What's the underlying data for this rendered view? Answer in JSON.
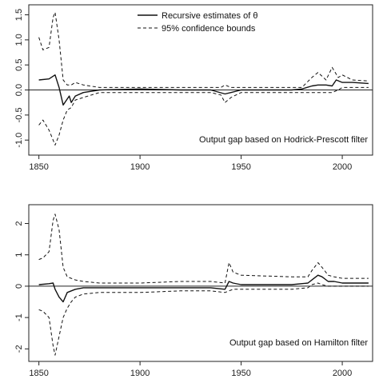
{
  "legend": {
    "estimate_label": "Recursive estimates of θ",
    "bounds_label": "95% confidence bounds"
  },
  "chart_data": [
    {
      "type": "line",
      "title": "",
      "annotation": "Output gap based on Hodrick-Prescott filter",
      "xlabel": "",
      "ylabel": "",
      "xlim": [
        1845,
        2015
      ],
      "ylim": [
        -1.3,
        1.7
      ],
      "xticks": [
        1850,
        1900,
        1950,
        2000
      ],
      "yticks": [
        -1.0,
        -0.5,
        0.0,
        0.5,
        1.0,
        1.5
      ],
      "ytick_labels": [
        "-1.0",
        "-0.5",
        "0.0",
        "0.5",
        "1.0",
        "1.5"
      ],
      "reference_line": 0,
      "legend_position": "top-center",
      "series": [
        {
          "style": "solid",
          "x": [
            1850,
            1855,
            1858,
            1860,
            1862,
            1865,
            1866,
            1868,
            1872,
            1880,
            1900,
            1920,
            1935,
            1942,
            1945,
            1950,
            1975,
            1980,
            1985,
            1988,
            1992,
            1995,
            1997,
            2000,
            2005,
            2013
          ],
          "y": [
            0.2,
            0.22,
            0.3,
            0.05,
            -0.3,
            -0.12,
            -0.25,
            -0.12,
            -0.05,
            0.0,
            0.02,
            0.0,
            0.0,
            -0.08,
            -0.05,
            0.0,
            0.0,
            0.02,
            0.08,
            0.1,
            0.1,
            0.08,
            0.2,
            0.15,
            0.15,
            0.13
          ]
        },
        {
          "style": "dashed",
          "x": [
            1850,
            1852,
            1855,
            1857,
            1858,
            1860,
            1862,
            1864,
            1866,
            1868,
            1872,
            1880,
            1900,
            1920,
            1935,
            1940,
            1942,
            1945,
            1950,
            1975,
            1980,
            1985,
            1988,
            1992,
            1995,
            1998,
            2000,
            2005,
            2013
          ],
          "y": [
            1.05,
            0.8,
            0.85,
            1.45,
            1.55,
            1.0,
            0.2,
            0.1,
            0.1,
            0.15,
            0.1,
            0.05,
            0.05,
            0.05,
            0.05,
            0.05,
            0.1,
            0.05,
            0.05,
            0.05,
            0.05,
            0.25,
            0.35,
            0.2,
            0.45,
            0.25,
            0.3,
            0.2,
            0.18
          ]
        },
        {
          "style": "dashed",
          "x": [
            1850,
            1852,
            1855,
            1857,
            1858,
            1860,
            1862,
            1864,
            1866,
            1868,
            1872,
            1880,
            1900,
            1920,
            1935,
            1940,
            1942,
            1945,
            1950,
            1975,
            1980,
            1985,
            1988,
            1992,
            1995,
            1998,
            2000,
            2005,
            2013
          ],
          "y": [
            -0.7,
            -0.6,
            -0.8,
            -1.0,
            -1.1,
            -0.9,
            -0.6,
            -0.4,
            -0.35,
            -0.2,
            -0.15,
            -0.05,
            -0.05,
            -0.05,
            -0.05,
            -0.1,
            -0.25,
            -0.15,
            -0.05,
            -0.05,
            -0.05,
            -0.05,
            -0.05,
            -0.05,
            -0.05,
            0.0,
            0.05,
            0.05,
            0.05
          ]
        }
      ]
    },
    {
      "type": "line",
      "title": "",
      "annotation": "Output gap based on Hamilton filter",
      "xlabel": "",
      "ylabel": "",
      "xlim": [
        1845,
        2015
      ],
      "ylim": [
        -2.4,
        2.6
      ],
      "xticks": [
        1850,
        1900,
        1950,
        2000
      ],
      "yticks": [
        -2,
        -1,
        0,
        1,
        2
      ],
      "ytick_labels": [
        "-2",
        "-1",
        "0",
        "1",
        "2"
      ],
      "reference_line": 0,
      "series": [
        {
          "style": "solid",
          "x": [
            1850,
            1855,
            1857,
            1858,
            1860,
            1862,
            1864,
            1866,
            1868,
            1872,
            1880,
            1900,
            1920,
            1935,
            1942,
            1944,
            1946,
            1950,
            1975,
            1983,
            1985,
            1988,
            1990,
            1993,
            1996,
            2000,
            2013
          ],
          "y": [
            0.05,
            0.08,
            0.1,
            -0.1,
            -0.35,
            -0.5,
            -0.2,
            -0.15,
            -0.1,
            -0.05,
            -0.05,
            -0.05,
            -0.05,
            -0.05,
            -0.1,
            0.15,
            0.1,
            0.05,
            0.05,
            0.1,
            0.2,
            0.35,
            0.3,
            0.15,
            0.15,
            0.1,
            0.1
          ]
        },
        {
          "style": "dashed",
          "x": [
            1850,
            1852,
            1855,
            1857,
            1858,
            1860,
            1862,
            1864,
            1866,
            1868,
            1872,
            1880,
            1900,
            1920,
            1935,
            1942,
            1944,
            1946,
            1950,
            1975,
            1983,
            1985,
            1988,
            1990,
            1993,
            1996,
            2000,
            2013
          ],
          "y": [
            0.85,
            0.9,
            1.1,
            2.1,
            2.3,
            1.8,
            0.6,
            0.3,
            0.25,
            0.2,
            0.15,
            0.1,
            0.1,
            0.15,
            0.15,
            0.1,
            0.75,
            0.45,
            0.35,
            0.3,
            0.3,
            0.5,
            0.75,
            0.6,
            0.35,
            0.3,
            0.25,
            0.25
          ]
        },
        {
          "style": "dashed",
          "x": [
            1850,
            1852,
            1855,
            1857,
            1858,
            1860,
            1862,
            1864,
            1866,
            1868,
            1872,
            1880,
            1900,
            1920,
            1935,
            1942,
            1944,
            1946,
            1950,
            1975,
            1983,
            1985,
            1988,
            1990,
            1993,
            1996,
            2000,
            2013
          ],
          "y": [
            -0.75,
            -0.8,
            -1.0,
            -1.9,
            -2.2,
            -1.6,
            -1.0,
            -0.7,
            -0.5,
            -0.35,
            -0.25,
            -0.2,
            -0.2,
            -0.15,
            -0.15,
            -0.2,
            -0.15,
            -0.1,
            -0.1,
            -0.1,
            -0.05,
            0.05,
            0.1,
            0.05,
            0.0,
            0.0,
            0.0,
            0.0
          ]
        }
      ]
    }
  ]
}
